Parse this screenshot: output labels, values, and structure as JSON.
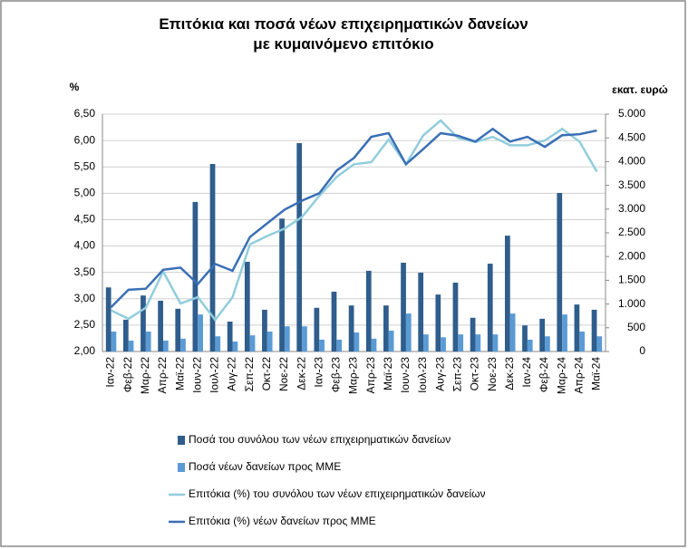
{
  "chart_data": {
    "type": "bar",
    "title": "Επιτόκια και ποσά νέων επιχειρηματικών δανείων με κυμαινόμενο επιτόκιο",
    "y_unit": "%",
    "y2_unit": "εκατ. ευρώ",
    "categories": [
      "Ιαν-22",
      "Φεβ-22",
      "Μαρ-22",
      "Απρ-22",
      "Μαϊ-22",
      "Ιουν-22",
      "Ιουλ-22",
      "Αυγ-22",
      "Σεπ-22",
      "Οκτ-22",
      "Νοε-22",
      "Δεκ-22",
      "Ιαν-23",
      "Φεβ-23",
      "Μαρ-23",
      "Απρ-23",
      "Μαϊ-23",
      "Ιουν-23",
      "Ιουλ-23",
      "Αυγ-23",
      "Σεπ-23",
      "Οκτ-23",
      "Νοε-23",
      "Δεκ-23",
      "Ιαν-24",
      "Φεβ-24",
      "Μαρ-24",
      "Απρ-24",
      "Μαϊ-24"
    ],
    "series": [
      {
        "name": "Ποσά του συνόλου των νέων επιχειρηματικών δανείων",
        "type": "bar",
        "axis": "y2",
        "color": "#2f5d8c",
        "values": [
          1350,
          670,
          1180,
          1070,
          900,
          3150,
          3950,
          630,
          1890,
          880,
          2800,
          4390,
          920,
          1260,
          970,
          1700,
          970,
          1870,
          1660,
          1200,
          1450,
          710,
          1850,
          2440,
          550,
          690,
          3340,
          990,
          880
        ]
      },
      {
        "name": "Ποσά νέων δανείων προς ΜΜΕ",
        "type": "bar",
        "axis": "y2",
        "color": "#5b9bd5",
        "values": [
          420,
          230,
          420,
          230,
          270,
          780,
          320,
          210,
          340,
          420,
          530,
          530,
          250,
          250,
          400,
          270,
          440,
          800,
          360,
          300,
          360,
          360,
          360,
          800,
          250,
          320,
          780,
          420,
          320
        ]
      },
      {
        "name": "Επιτόκια (%) του συνόλου των νέων επιχειρηματικών δανείων",
        "type": "line",
        "color": "#92cddc",
        "values": [
          2.78,
          2.62,
          2.83,
          3.52,
          2.91,
          3.03,
          2.6,
          3.03,
          4.03,
          4.19,
          4.33,
          4.55,
          4.95,
          5.31,
          5.55,
          5.59,
          6.02,
          5.55,
          6.1,
          6.38,
          6.05,
          5.97,
          6.07,
          5.91,
          5.91,
          6.0,
          6.22,
          5.98,
          5.41
        ]
      },
      {
        "name": "Επιτόκια (%) νέων δανείων προς ΜΜΕ",
        "type": "line",
        "color": "#3a6fb5",
        "values": [
          2.84,
          3.17,
          3.19,
          3.55,
          3.59,
          3.28,
          3.66,
          3.53,
          4.17,
          4.43,
          4.69,
          4.86,
          5.0,
          5.43,
          5.67,
          6.07,
          6.14,
          5.55,
          5.84,
          6.14,
          6.09,
          5.98,
          6.22,
          5.98,
          6.07,
          5.88,
          6.1,
          6.12,
          6.19
        ]
      }
    ],
    "ylim": [
      2,
      6.5
    ],
    "yticks": [
      {
        "value": 2,
        "label": "2,00"
      },
      {
        "value": 2.5,
        "label": "2,50"
      },
      {
        "value": 3,
        "label": "3,00"
      },
      {
        "value": 3.5,
        "label": "3,50"
      },
      {
        "value": 4,
        "label": "4,00"
      },
      {
        "value": 4.5,
        "label": "4,50"
      },
      {
        "value": 5,
        "label": "5,00"
      },
      {
        "value": 5.5,
        "label": "5,50"
      },
      {
        "value": 6,
        "label": "6,00"
      },
      {
        "value": 6.5,
        "label": "6,50"
      }
    ],
    "y2lim": [
      0,
      5000
    ],
    "y2ticks": [
      0,
      500,
      {
        "value": 1000,
        "label": "1.000"
      },
      {
        "value": 1500,
        "label": "1.500"
      },
      {
        "value": 2000,
        "label": "2.000"
      },
      {
        "value": 2500,
        "label": "2.500"
      },
      {
        "value": 3000,
        "label": "3.000"
      },
      {
        "value": 3500,
        "label": "3.500"
      },
      {
        "value": 4000,
        "label": "4.000"
      },
      {
        "value": 4500,
        "label": "4.500"
      },
      {
        "value": 5000,
        "label": "5.000"
      }
    ],
    "grid": true
  }
}
